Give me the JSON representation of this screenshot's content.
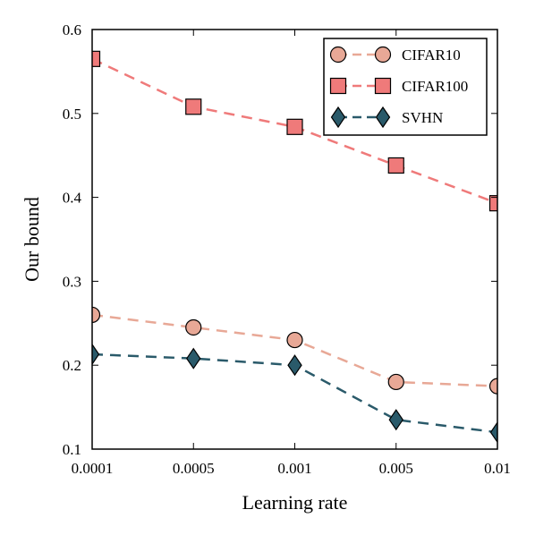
{
  "chart_data": {
    "type": "line",
    "title": "",
    "xlabel": "Learning rate",
    "ylabel": "Our bound",
    "categories": [
      "0.0001",
      "0.0005",
      "0.001",
      "0.005",
      "0.01"
    ],
    "ylim": [
      0.1,
      0.6
    ],
    "yticks": [
      "0.1",
      "0.2",
      "0.3",
      "0.4",
      "0.5",
      "0.6"
    ],
    "grid": false,
    "legend_position": "top-right",
    "series": [
      {
        "name": "CIFAR10",
        "values": [
          0.26,
          0.245,
          0.23,
          0.18,
          0.175
        ],
        "color": "#e8a896",
        "marker": "circle",
        "line_style": "dashed"
      },
      {
        "name": "CIFAR100",
        "values": [
          0.565,
          0.508,
          0.484,
          0.438,
          0.393
        ],
        "color": "#ef7a7a",
        "marker": "square",
        "line_style": "dashed"
      },
      {
        "name": "SVHN",
        "values": [
          0.213,
          0.208,
          0.2,
          0.135,
          0.12
        ],
        "color": "#2a5a6a",
        "marker": "diamond",
        "line_style": "dashed"
      }
    ]
  }
}
